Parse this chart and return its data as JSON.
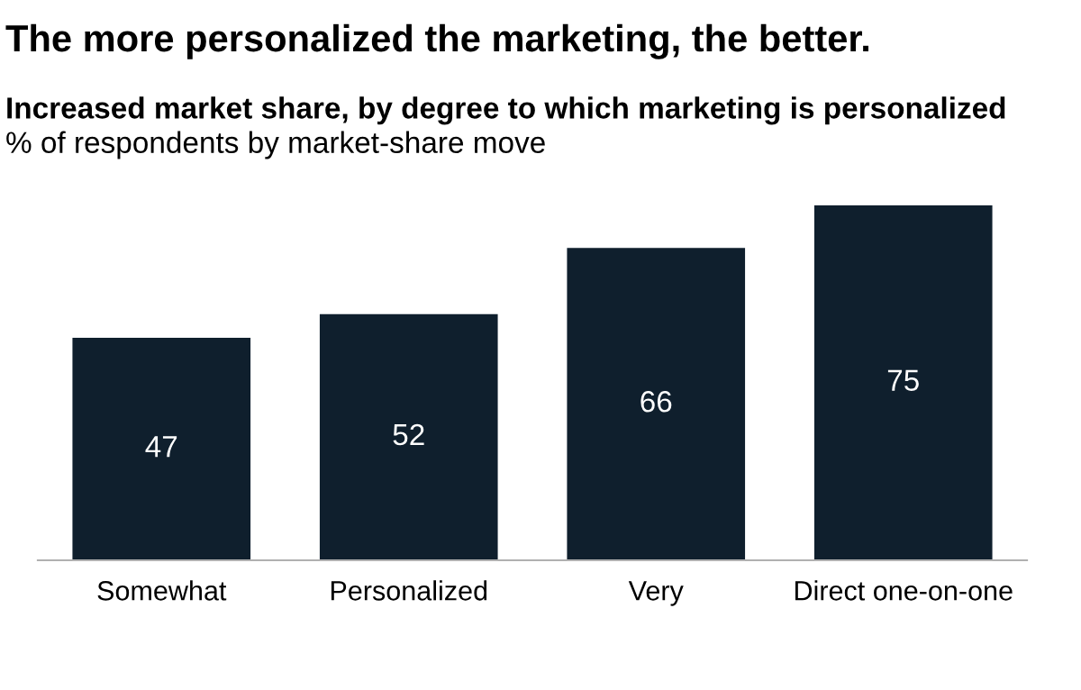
{
  "chart_data": {
    "type": "bar",
    "title": "The more personalized the marketing, the better.",
    "subtitle": "Increased market share, by degree to which marketing is personalized",
    "annotations": [
      "% of respondents by market-share move"
    ],
    "categories": [
      "Somewhat",
      "Personalized",
      "Very",
      "Direct one-on-one"
    ],
    "values": [
      47,
      52,
      66,
      75
    ],
    "color": "#0f1f2d",
    "data_labels": true,
    "tick_labels": "x",
    "grid": false,
    "legend": false
  }
}
